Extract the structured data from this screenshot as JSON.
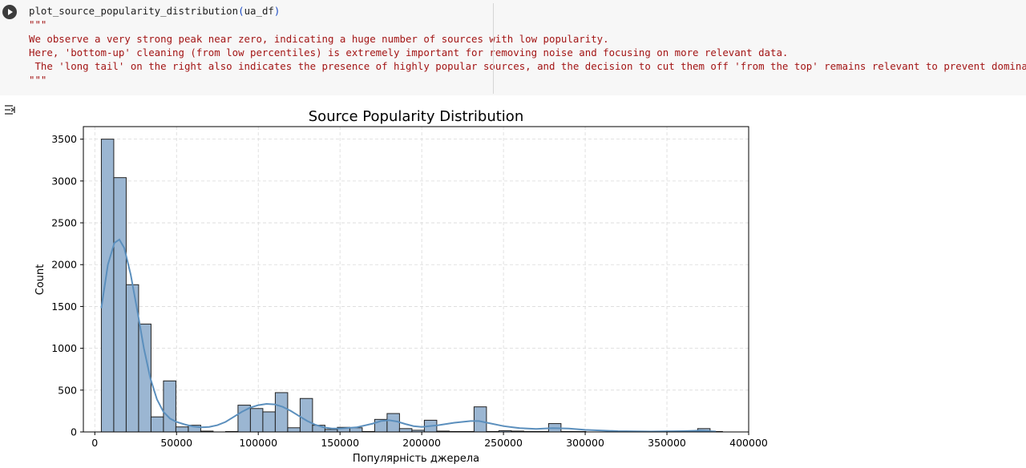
{
  "cell": {
    "code_fn": "plot_source_popularity_distribution",
    "code_open": "(",
    "code_arg": "ua_df",
    "code_close": ")",
    "docstring_open": "\"\"\"",
    "docstring_lines": [
      "We observe a very strong peak near zero, indicating a huge number of sources with low popularity.",
      "Here, 'bottom-up' cleaning (from low percentiles) is extremely important for removing noise and focusing on more relevant data.",
      " The 'long tail' on the right also indicates the presence of highly popular sources, and the decision to cut them off 'from the top' remains relevant to prevent dominance."
    ],
    "docstring_close": "\"\"\"",
    "run_icon": "play-icon",
    "output_icon": "output-toggle-icon"
  },
  "chart_data": {
    "type": "histogram",
    "title": "Source Popularity Distribution",
    "xlabel": "Популярність джерела",
    "ylabel": "Count",
    "xlim": [
      -7000,
      400000
    ],
    "ylim": [
      0,
      3650
    ],
    "xticks": [
      0,
      50000,
      100000,
      150000,
      200000,
      250000,
      300000,
      350000,
      400000
    ],
    "yticks": [
      0,
      500,
      1000,
      1500,
      2000,
      2500,
      3000,
      3500
    ],
    "grid": true,
    "bar_color": "#9bb6d2",
    "bar_edge_color": "#222222",
    "kde_color": "#5b8fbd",
    "bins": [
      {
        "x0": 4000,
        "x1": 11600,
        "count": 3500
      },
      {
        "x0": 11600,
        "x1": 19200,
        "count": 3040
      },
      {
        "x0": 19200,
        "x1": 26800,
        "count": 1760
      },
      {
        "x0": 26800,
        "x1": 34400,
        "count": 1290
      },
      {
        "x0": 34400,
        "x1": 42000,
        "count": 180
      },
      {
        "x0": 42000,
        "x1": 49600,
        "count": 610
      },
      {
        "x0": 49600,
        "x1": 57200,
        "count": 60
      },
      {
        "x0": 57200,
        "x1": 64800,
        "count": 80
      },
      {
        "x0": 64800,
        "x1": 72400,
        "count": 10
      },
      {
        "x0": 80000,
        "x1": 87600,
        "count": 5
      },
      {
        "x0": 87600,
        "x1": 95200,
        "count": 320
      },
      {
        "x0": 95200,
        "x1": 102800,
        "count": 280
      },
      {
        "x0": 102800,
        "x1": 110400,
        "count": 240
      },
      {
        "x0": 110400,
        "x1": 118000,
        "count": 470
      },
      {
        "x0": 118000,
        "x1": 125600,
        "count": 50
      },
      {
        "x0": 125600,
        "x1": 133200,
        "count": 400
      },
      {
        "x0": 133200,
        "x1": 140800,
        "count": 80
      },
      {
        "x0": 140800,
        "x1": 148400,
        "count": 30
      },
      {
        "x0": 148400,
        "x1": 156000,
        "count": 55
      },
      {
        "x0": 156000,
        "x1": 163600,
        "count": 50
      },
      {
        "x0": 163600,
        "x1": 171200,
        "count": 5
      },
      {
        "x0": 171200,
        "x1": 178800,
        "count": 150
      },
      {
        "x0": 178800,
        "x1": 186400,
        "count": 220
      },
      {
        "x0": 186400,
        "x1": 194000,
        "count": 40
      },
      {
        "x0": 194000,
        "x1": 201600,
        "count": 20
      },
      {
        "x0": 201600,
        "x1": 209200,
        "count": 140
      },
      {
        "x0": 209200,
        "x1": 216800,
        "count": 10
      },
      {
        "x0": 216800,
        "x1": 224400,
        "count": 5
      },
      {
        "x0": 224400,
        "x1": 232000,
        "count": 5
      },
      {
        "x0": 232000,
        "x1": 239600,
        "count": 300
      },
      {
        "x0": 239600,
        "x1": 247200,
        "count": 5
      },
      {
        "x0": 247200,
        "x1": 254800,
        "count": 15
      },
      {
        "x0": 254800,
        "x1": 262400,
        "count": 10
      },
      {
        "x0": 262400,
        "x1": 270000,
        "count": 5
      },
      {
        "x0": 270000,
        "x1": 277600,
        "count": 5
      },
      {
        "x0": 277600,
        "x1": 285200,
        "count": 100
      },
      {
        "x0": 285200,
        "x1": 292800,
        "count": 5
      },
      {
        "x0": 292800,
        "x1": 300400,
        "count": 5
      },
      {
        "x0": 315600,
        "x1": 323200,
        "count": 5
      },
      {
        "x0": 338400,
        "x1": 346000,
        "count": 5
      },
      {
        "x0": 368800,
        "x1": 376400,
        "count": 40
      },
      {
        "x0": 376400,
        "x1": 384000,
        "count": 5
      }
    ],
    "kde": {
      "x": [
        4000,
        8000,
        12000,
        15000,
        18000,
        22000,
        26000,
        30000,
        34000,
        38000,
        42000,
        46000,
        50000,
        55000,
        60000,
        65000,
        70000,
        75000,
        80000,
        85000,
        90000,
        95000,
        100000,
        105000,
        110000,
        115000,
        120000,
        125000,
        130000,
        135000,
        140000,
        145000,
        150000,
        160000,
        170000,
        175000,
        180000,
        185000,
        190000,
        195000,
        200000,
        210000,
        220000,
        230000,
        235000,
        240000,
        250000,
        260000,
        270000,
        280000,
        290000,
        300000,
        320000,
        340000,
        360000,
        370000,
        380000
      ],
      "y": [
        1480,
        2000,
        2260,
        2300,
        2200,
        1880,
        1450,
        1000,
        640,
        390,
        240,
        160,
        120,
        90,
        65,
        55,
        60,
        80,
        120,
        180,
        240,
        290,
        320,
        335,
        330,
        300,
        250,
        190,
        130,
        85,
        55,
        40,
        40,
        55,
        100,
        130,
        140,
        125,
        95,
        70,
        60,
        80,
        110,
        130,
        130,
        110,
        70,
        45,
        35,
        45,
        40,
        25,
        10,
        5,
        10,
        15,
        5
      ]
    }
  }
}
